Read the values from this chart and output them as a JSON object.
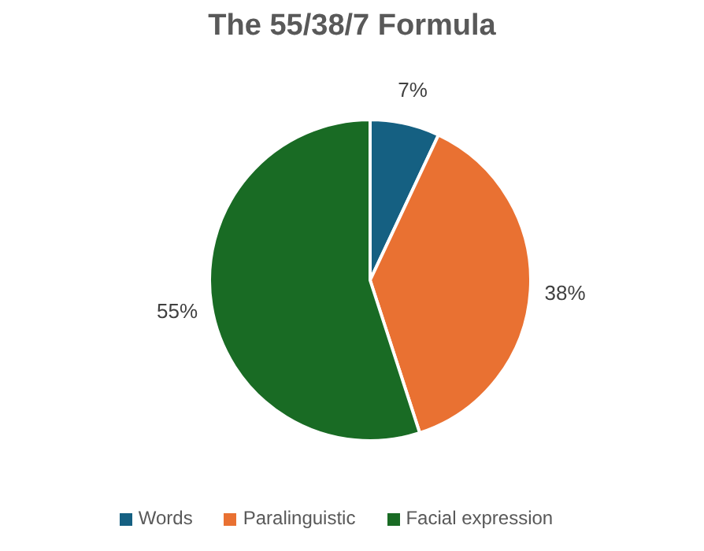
{
  "chart_data": {
    "type": "pie",
    "title": "The 55/38/7 Formula",
    "categories": [
      "Words",
      "Paralinguistic",
      "Facial expression"
    ],
    "values": [
      7,
      38,
      55
    ],
    "colors": [
      "#156082",
      "#e97132",
      "#196b24"
    ],
    "value_labels": [
      "7%",
      "38%",
      "55%"
    ],
    "legend": "bottom"
  }
}
